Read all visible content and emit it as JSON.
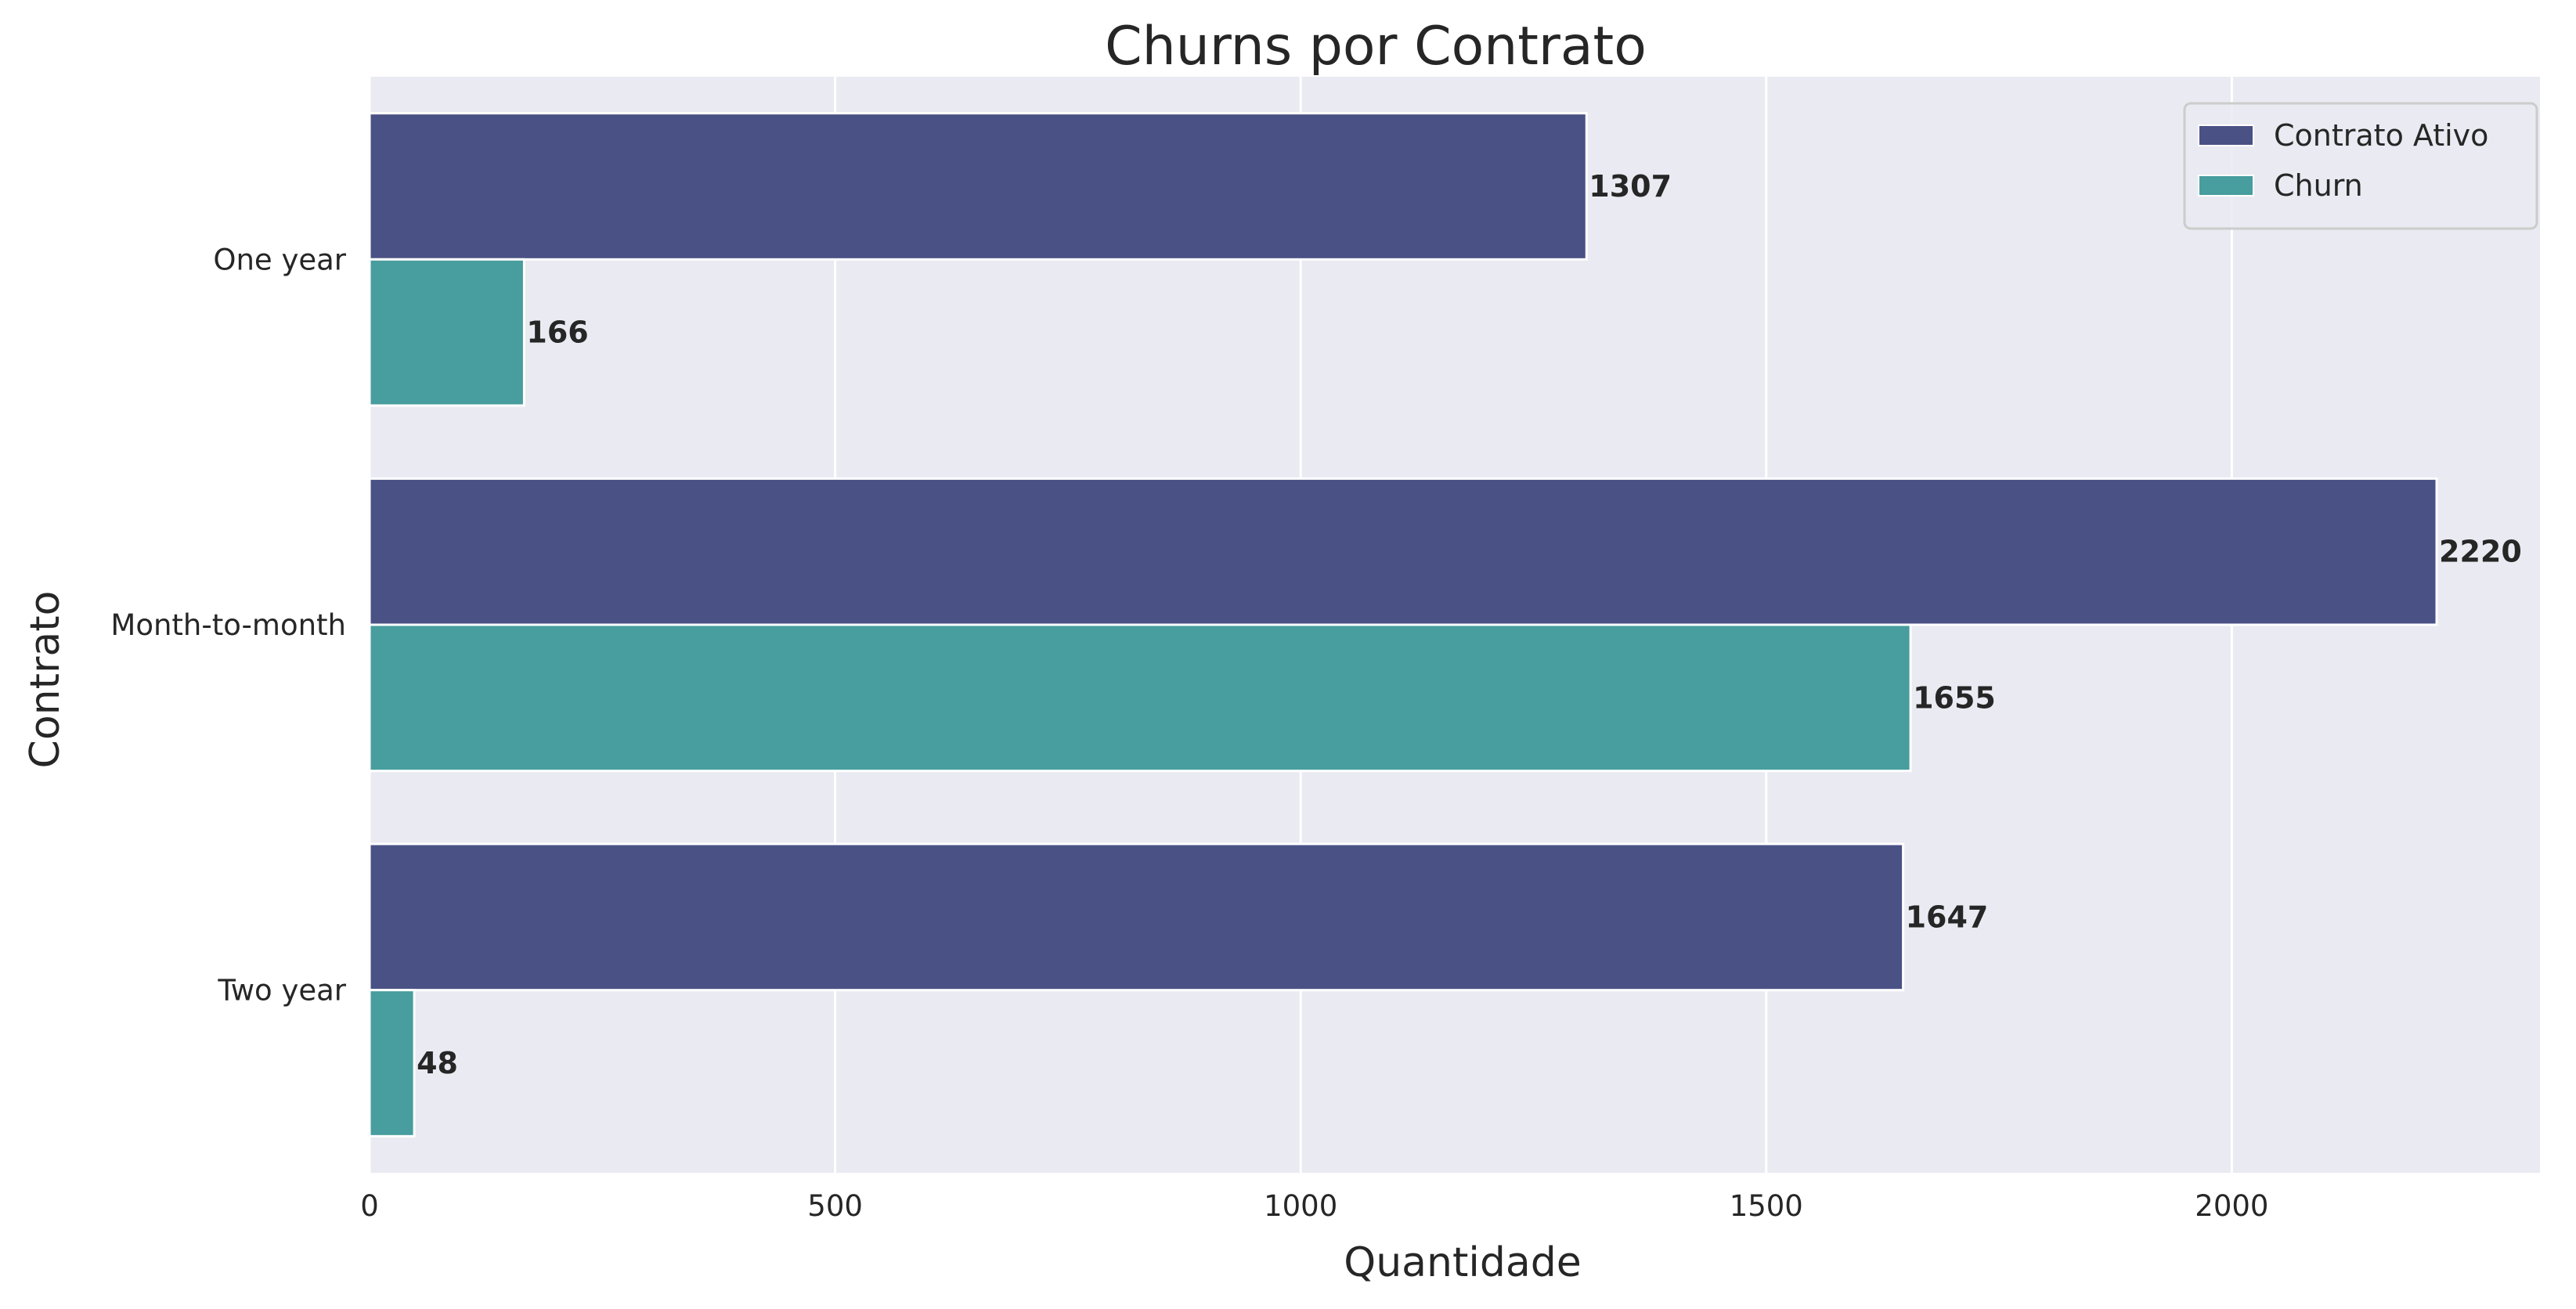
{
  "chart_data": {
    "type": "bar",
    "orientation": "horizontal",
    "title": "Churns por Contrato",
    "xlabel": "Quantidade",
    "ylabel": "Contrato",
    "categories": [
      "One year",
      "Month-to-month",
      "Two year"
    ],
    "series": [
      {
        "name": "Contrato Ativo",
        "color": "#4a5185",
        "values": [
          1307,
          2220,
          1647
        ]
      },
      {
        "name": "Churn",
        "color": "#489d9e",
        "values": [
          166,
          1655,
          48
        ]
      }
    ],
    "xlim": [
      0,
      2331
    ],
    "xticks": [
      0,
      500,
      1000,
      1500,
      2000
    ],
    "grid": true,
    "legend_position": "top-right",
    "background_color": "#eaeaf2"
  }
}
